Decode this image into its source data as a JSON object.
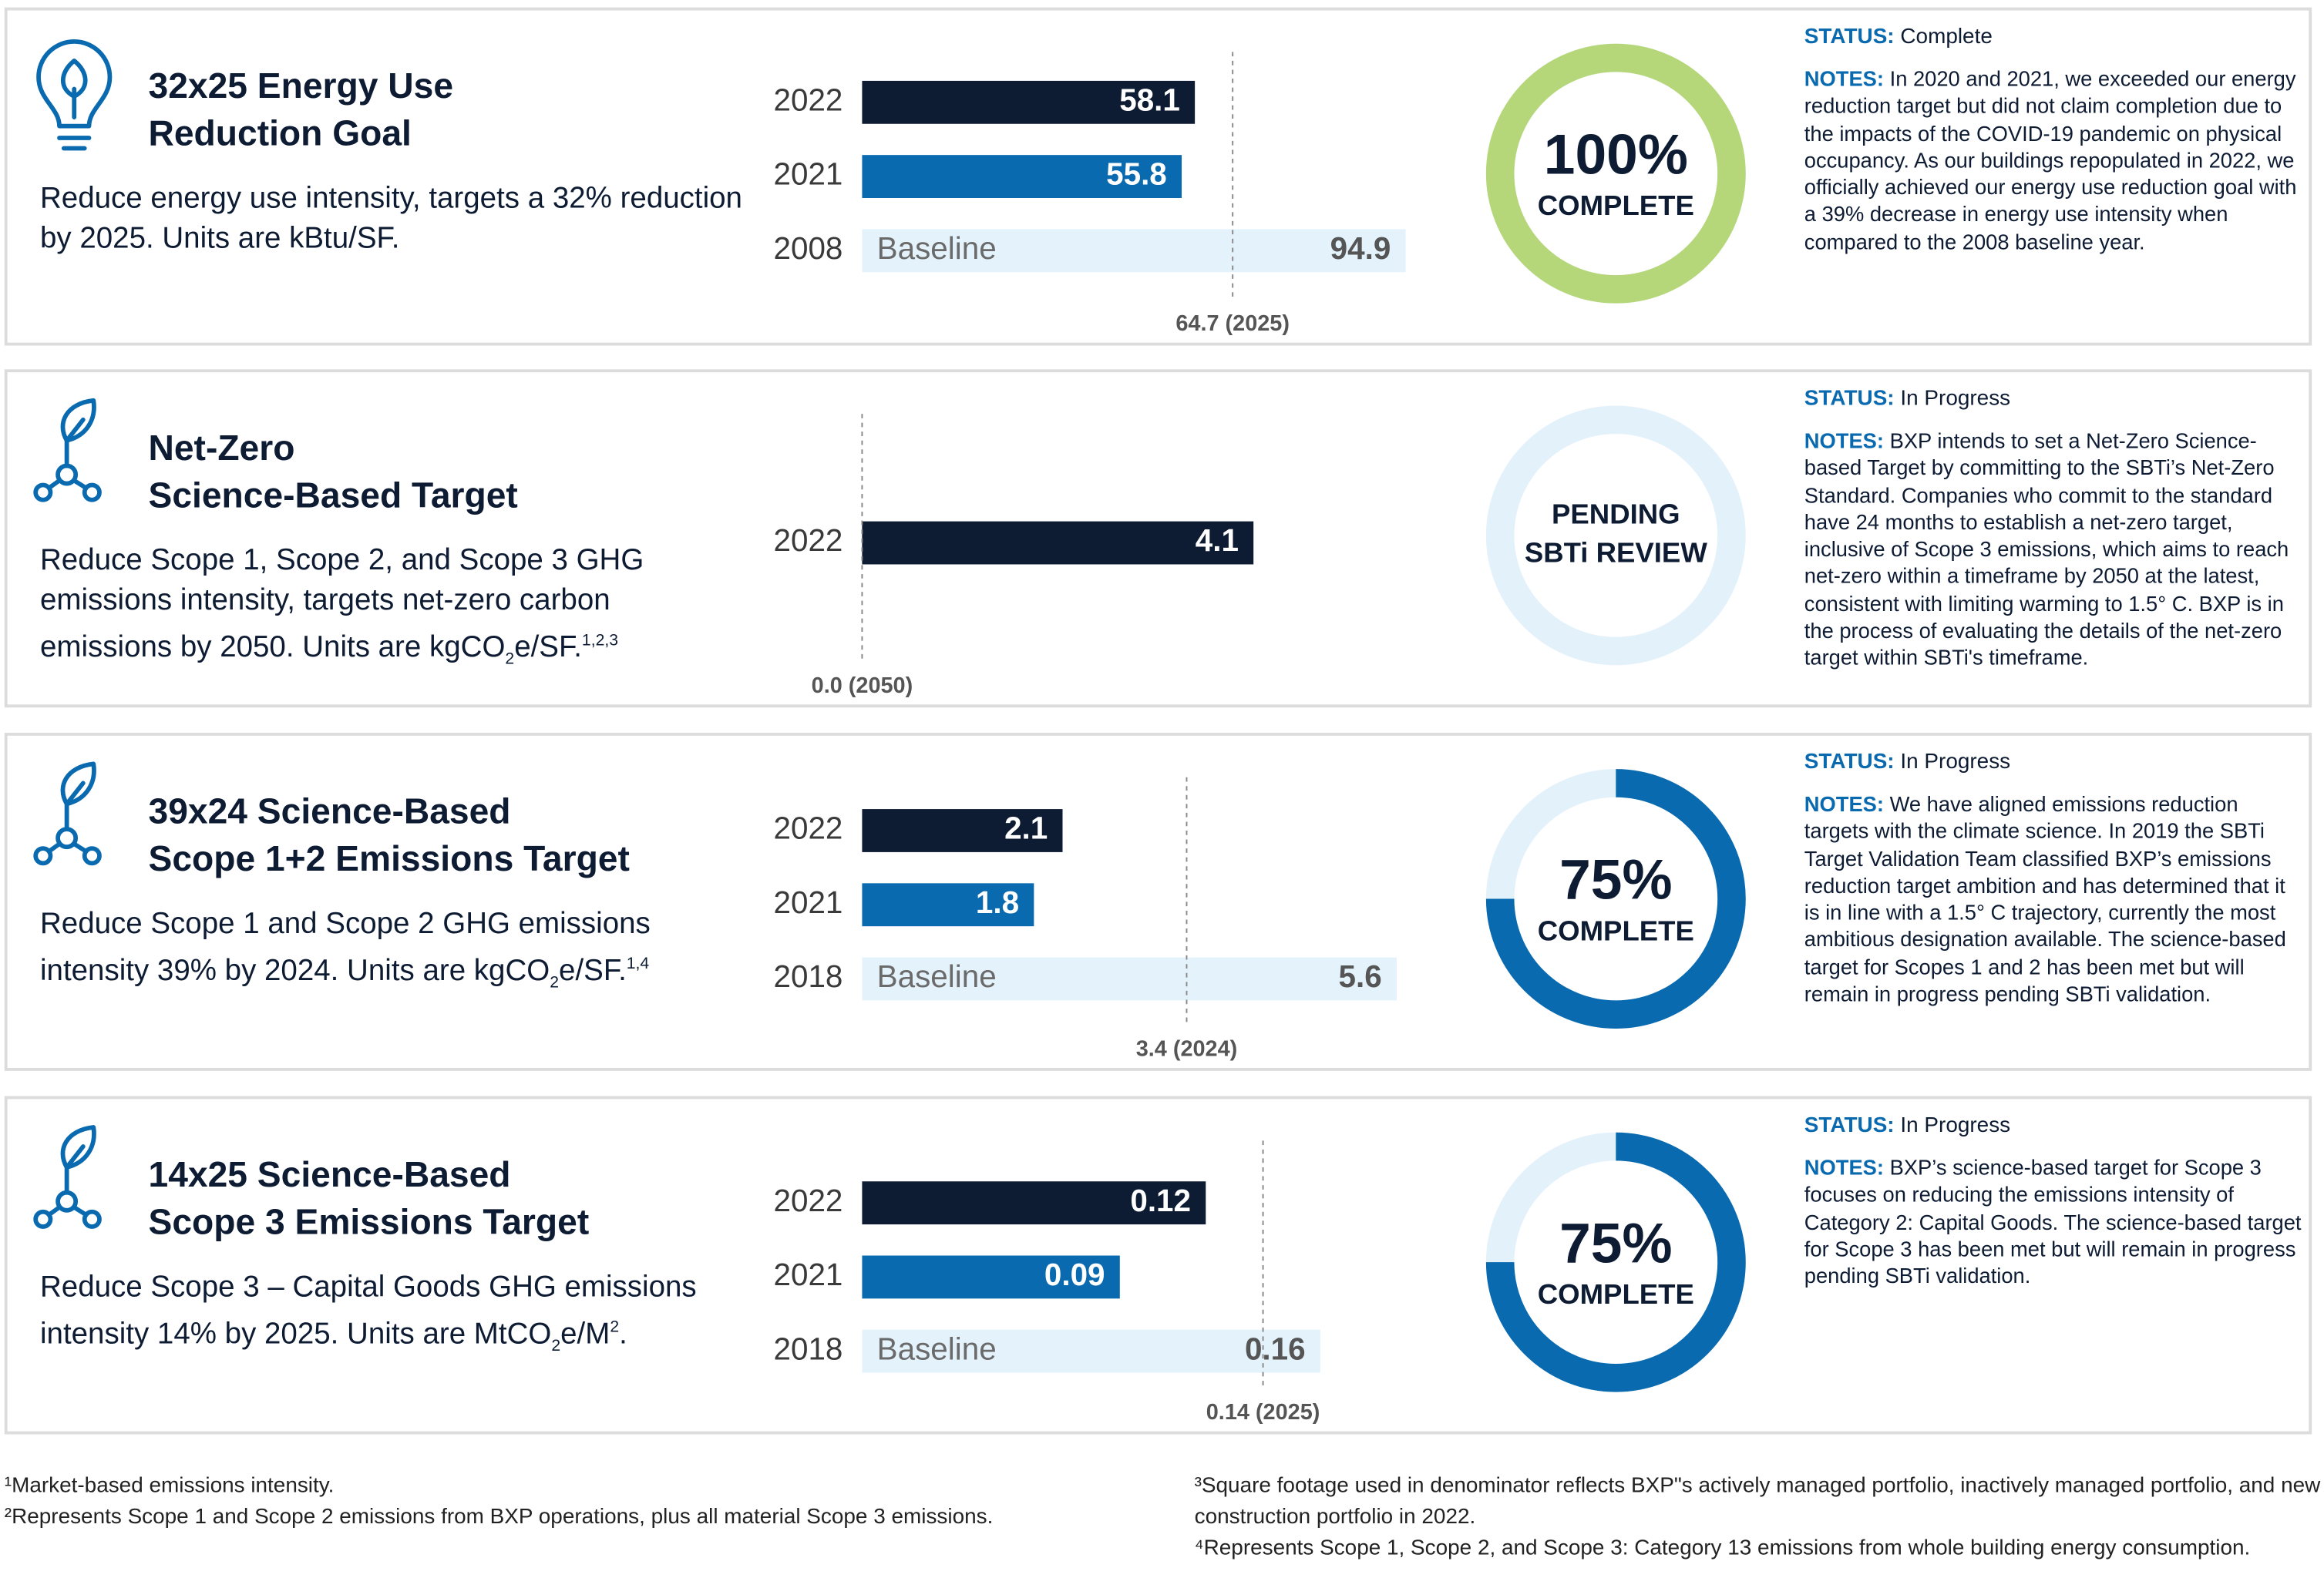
{
  "chart_data": [
    {
      "type": "bar",
      "orientation": "horizontal",
      "categories": [
        "2022",
        "2021",
        "2008"
      ],
      "values": [
        58.1,
        55.8,
        94.9
      ],
      "colors": [
        "#0d1b33",
        "#0a6ab0",
        "#e4f2fc"
      ],
      "bar_texts": [
        null,
        null,
        "Baseline"
      ],
      "xlim": [
        0,
        100
      ],
      "target": {
        "value": 64.7,
        "label": "64.7 (2025)"
      }
    },
    {
      "type": "bar",
      "orientation": "horizontal",
      "categories": [
        "2022"
      ],
      "values": [
        4.1
      ],
      "colors": [
        "#0d1b33"
      ],
      "bar_texts": [
        null
      ],
      "xlim": [
        0,
        6
      ],
      "target": {
        "value": 0.0,
        "label": "0.0 (2050)"
      }
    },
    {
      "type": "bar",
      "orientation": "horizontal",
      "categories": [
        "2022",
        "2021",
        "2018"
      ],
      "values": [
        2.1,
        1.8,
        5.6
      ],
      "colors": [
        "#0d1b33",
        "#0a6ab0",
        "#e4f2fc"
      ],
      "bar_texts": [
        null,
        null,
        "Baseline"
      ],
      "xlim": [
        0,
        6
      ],
      "target": {
        "value": 3.4,
        "label": "3.4 (2024)"
      }
    },
    {
      "type": "bar",
      "orientation": "horizontal",
      "categories": [
        "2022",
        "2021",
        "2018"
      ],
      "values": [
        0.12,
        0.09,
        0.16
      ],
      "colors": [
        "#0d1b33",
        "#0a6ab0",
        "#e4f2fc"
      ],
      "bar_texts": [
        null,
        null,
        "Baseline"
      ],
      "xlim": [
        0,
        0.2
      ],
      "target": {
        "value": 0.14,
        "label": "0.14 (2025)"
      }
    }
  ],
  "panels": [
    {
      "title_lines": [
        "32x25 Energy Use",
        "Reduction Goal"
      ],
      "description": [
        {
          "text": "Reduce energy use intensity, targets a 32% reduction by 2025. Units are kBtu/SF."
        }
      ],
      "donut": {
        "percent": 100,
        "percent_label": "100%",
        "text_lines": [
          "COMPLETE"
        ],
        "color": "#b5d77a"
      },
      "status_label": "STATUS:",
      "status": "Complete",
      "notes_label": "NOTES:",
      "notes": "In 2020 and 2021, we exceeded our energy reduction target but did not claim completion due to the impacts of the COVID-19 pandemic on physical occupancy. As our buildings repopulated in 2022, we officially achieved our energy use reduction goal with a 39% decrease in energy use intensity when compared to the 2008 baseline year."
    },
    {
      "title_lines": [
        "Net-Zero",
        "Science-Based Target"
      ],
      "description": [
        {
          "text": "Reduce Scope 1, Scope 2, and Scope 3 GHG emissions intensity, targets net-zero carbon emissions by 2050. Units are kgCO"
        },
        {
          "sub": "2"
        },
        {
          "text": "e/SF."
        },
        {
          "sup": "1,2,3"
        }
      ],
      "donut": {
        "text_lines": [
          "PENDING",
          "SBTi REVIEW"
        ],
        "color": "#e3f1fb"
      },
      "status_label": "STATUS:",
      "status": "In Progress",
      "notes_label": "NOTES:",
      "notes": "BXP intends to set a Net-Zero Science-based Target by committing to the SBTi’s Net-Zero Standard. Companies who commit to the standard have 24 months to establish a net-zero target, inclusive of Scope 3 emissions, which aims to reach net-zero within a timeframe by 2050 at the latest, consistent with limiting warming to 1.5° C. BXP is in the process of evaluating the details of the net-zero target within SBTi's timeframe."
    },
    {
      "title_lines": [
        "39x24 Science-Based",
        "Scope 1+2 Emissions Target"
      ],
      "description": [
        {
          "text": "Reduce Scope 1 and Scope 2 GHG emissions intensity 39% by 2024. Units are kgCO"
        },
        {
          "sub": "2"
        },
        {
          "text": "e/SF."
        },
        {
          "sup": "1,4"
        }
      ],
      "donut": {
        "percent": 75,
        "percent_label": "75%",
        "text_lines": [
          "COMPLETE"
        ],
        "color": "#0a6ab0"
      },
      "status_label": "STATUS:",
      "status": "In Progress",
      "notes_label": "NOTES:",
      "notes": "We have aligned emissions reduction targets with the climate science. In 2019 the SBTi Target Validation Team classified BXP’s emissions reduction target ambition and has determined that it is in line with a 1.5° C trajectory, currently the most ambitious designation available. The science-based target for Scopes 1 and 2 has been met but will remain in progress pending SBTi validation."
    },
    {
      "title_lines": [
        "14x25 Science-Based",
        "Scope 3 Emissions Target"
      ],
      "description": [
        {
          "text": "Reduce Scope 3 – Capital Goods GHG emissions intensity 14% by 2025. Units are MtCO"
        },
        {
          "sub": "2"
        },
        {
          "text": "e/M"
        },
        {
          "sup": "2"
        },
        {
          "text": "."
        }
      ],
      "donut": {
        "percent": 75,
        "percent_label": "75%",
        "text_lines": [
          "COMPLETE"
        ],
        "color": "#0a6ab0"
      },
      "status_label": "STATUS:",
      "status": "In Progress",
      "notes_label": "NOTES:",
      "notes": "BXP’s science-based target for Scope 3 focuses on reducing the emissions intensity of Category 2: Capital Goods. The science-based target for Scope 3 has been met but will remain in progress pending SBTi validation."
    }
  ],
  "footnotes": {
    "left": [
      "¹Market-based emissions intensity.",
      "²Represents Scope 1 and Scope 2 emissions from BXP operations, plus all material Scope 3 emissions."
    ],
    "right": [
      "³Square footage used in denominator reflects BXP\"s actively managed portfolio, inactively managed portfolio, and new construction portfolio in 2022.",
      "⁴Represents Scope 1, Scope 2, and Scope 3: Category 13 emissions from whole building energy consumption."
    ]
  }
}
